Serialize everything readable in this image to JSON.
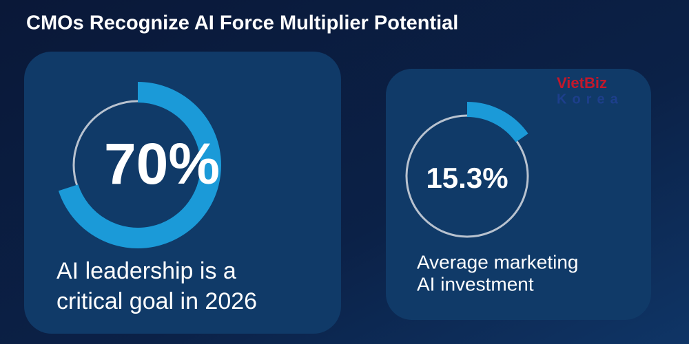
{
  "title": "CMOs Recognize AI Force Multiplier Potential",
  "watermark": [
    "VietBiz",
    "Korea"
  ],
  "chart_data": [
    {
      "type": "donut",
      "values": [
        70
      ],
      "value_labels": [
        "70%"
      ],
      "color": "#1b9ad8",
      "caption": [
        "AI leadership is a",
        "critical goal in 2026"
      ]
    },
    {
      "type": "donut",
      "values": [
        15.3
      ],
      "value_labels": [
        "15.3%"
      ],
      "color": "#1b9ad8",
      "caption": [
        "Average marketing",
        "AI investment"
      ]
    }
  ]
}
